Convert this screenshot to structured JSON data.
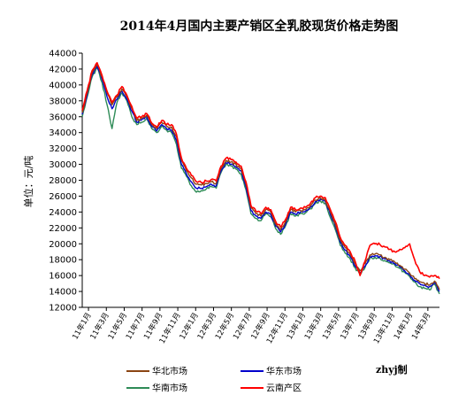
{
  "chart_data": {
    "type": "line",
    "title": "2014年4月国内主要产销区全乳胶现货价格走势图",
    "ylabel": "单位：元/吨",
    "ylim": [
      12000,
      44000
    ],
    "yticks": [
      12000,
      14000,
      16000,
      18000,
      20000,
      22000,
      24000,
      26000,
      28000,
      30000,
      32000,
      34000,
      36000,
      38000,
      40000,
      42000,
      44000
    ],
    "grid": false,
    "legend_position": "bottom",
    "credit": "zhyj制",
    "x_tick_labels": [
      "11年1月",
      "11年3月",
      "11年5月",
      "11年7月",
      "11年9月",
      "11年11月",
      "12年1月",
      "12年3月",
      "12年5月",
      "12年7月",
      "12年9月",
      "12年11月",
      "13年1月",
      "13年3月",
      "13年5月",
      "13年7月",
      "13年9月",
      "13年11月",
      "14年1月",
      "14年3月"
    ],
    "series": [
      {
        "name": "华北市场",
        "color": "#8B4513",
        "values": [
          36500,
          39000,
          41500,
          42600,
          41000,
          39000,
          37500,
          38500,
          39500,
          38500,
          37000,
          35500,
          35800,
          36200,
          35000,
          34500,
          35300,
          34800,
          34700,
          33500,
          30500,
          29200,
          28300,
          27500,
          27400,
          27600,
          27800,
          27600,
          29500,
          30500,
          30300,
          30000,
          29500,
          27500,
          24500,
          23800,
          23500,
          24300,
          24000,
          22500,
          21800,
          22800,
          24300,
          24000,
          24200,
          24300,
          24800,
          25500,
          25800,
          25500,
          24000,
          22500,
          20500,
          19500,
          18700,
          17500,
          16600,
          17500,
          18600,
          18700,
          18600,
          18300,
          18000,
          17700,
          17300,
          16800,
          16300,
          15600,
          15200,
          15000,
          14800,
          15300,
          14200
        ]
      },
      {
        "name": "华东市场",
        "color": "#0000CC",
        "values": [
          36300,
          38800,
          41300,
          42400,
          40700,
          38500,
          37000,
          38200,
          39200,
          38200,
          36700,
          35300,
          35600,
          36000,
          34800,
          34200,
          35000,
          34500,
          34300,
          33000,
          30000,
          28800,
          27800,
          27000,
          27000,
          27200,
          27500,
          27300,
          29200,
          30200,
          30000,
          29700,
          29200,
          27200,
          24200,
          23500,
          23200,
          24000,
          23700,
          22200,
          21500,
          22500,
          24000,
          23700,
          24000,
          24100,
          24600,
          25300,
          25600,
          25300,
          23700,
          22200,
          20200,
          19200,
          18400,
          17200,
          16300,
          17200,
          18400,
          18500,
          18400,
          18100,
          17800,
          17500,
          17100,
          16600,
          16100,
          15400,
          15000,
          14800,
          14600,
          15100,
          14000
        ]
      },
      {
        "name": "华南市场",
        "color": "#2E8B57",
        "values": [
          36000,
          38500,
          41000,
          42200,
          40300,
          37500,
          34500,
          37800,
          39000,
          38000,
          36000,
          35000,
          35300,
          35800,
          34500,
          34000,
          34800,
          34300,
          34000,
          32500,
          29500,
          28500,
          27300,
          26500,
          26700,
          26900,
          27200,
          27000,
          29000,
          30000,
          29800,
          29400,
          28800,
          26800,
          23800,
          23200,
          22900,
          23800,
          23400,
          21900,
          21200,
          22300,
          23800,
          23500,
          23800,
          23900,
          24400,
          25100,
          25400,
          25100,
          23300,
          21800,
          19800,
          18800,
          18100,
          17000,
          16100,
          17000,
          18200,
          18300,
          18200,
          17900,
          17600,
          17300,
          16900,
          16400,
          15900,
          15200,
          14600,
          14400,
          14200,
          14900,
          13700
        ]
      },
      {
        "name": "云南产区",
        "color": "#FF0000",
        "values": [
          36800,
          39300,
          41800,
          42800,
          41200,
          39200,
          37800,
          38700,
          39800,
          38700,
          37300,
          35800,
          36000,
          36400,
          35200,
          34700,
          35500,
          35000,
          35000,
          33800,
          30800,
          29500,
          28600,
          27800,
          27700,
          27900,
          28100,
          27900,
          29800,
          30800,
          30600,
          30300,
          29800,
          27800,
          24800,
          24100,
          23800,
          24600,
          24300,
          22800,
          22100,
          23100,
          24600,
          24300,
          24500,
          24600,
          25100,
          25800,
          26000,
          25800,
          24300,
          22800,
          20800,
          19800,
          19000,
          17800,
          16000,
          17800,
          19800,
          20000,
          19900,
          19600,
          19300,
          19000,
          19300,
          19500,
          20000,
          18000,
          16500,
          16000,
          15800,
          16000,
          15600
        ]
      }
    ]
  }
}
